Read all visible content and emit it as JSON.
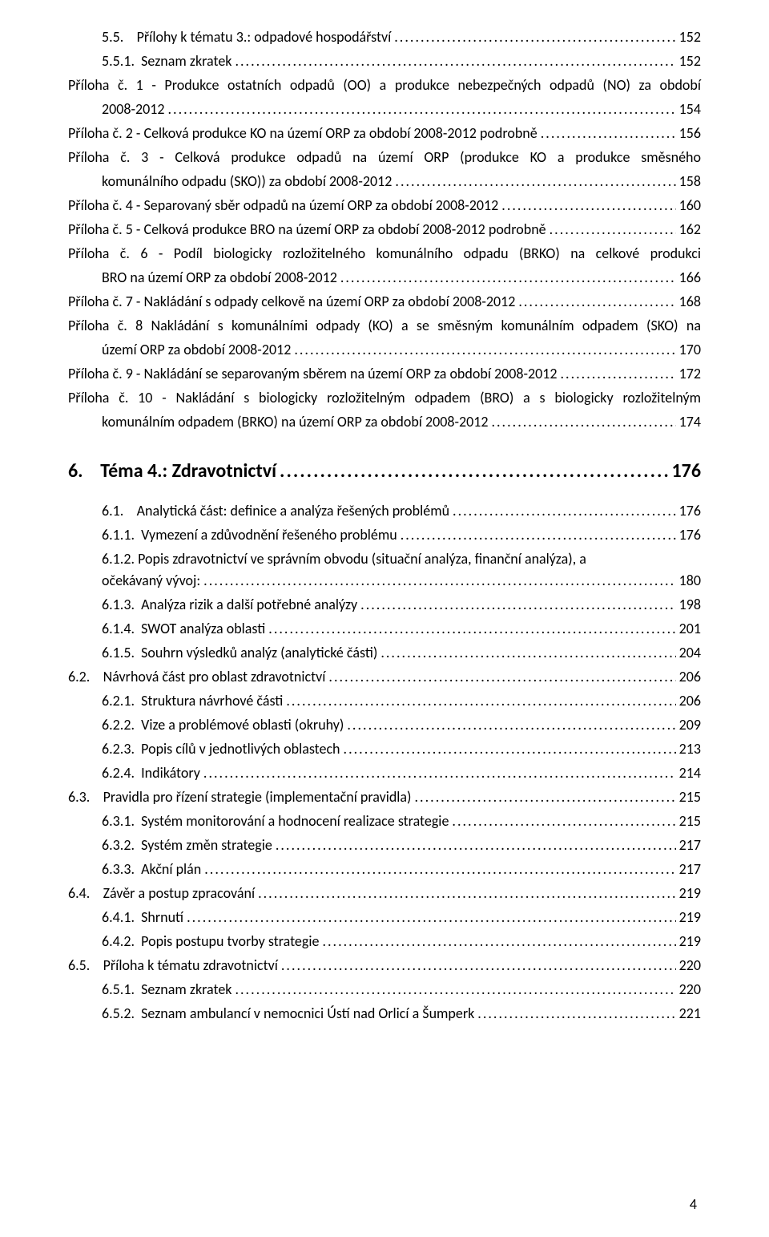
{
  "pageNumber": "4",
  "lines": [
    {
      "type": "toc",
      "lvl": 1,
      "label": "5.5.    Přílohy k tématu 3.: odpadové hospodářství",
      "page": "152"
    },
    {
      "type": "toc",
      "lvl": 1,
      "label": "5.5.1.  Seznam zkratek",
      "page": "152"
    },
    {
      "type": "priloha-first",
      "text": "Příloha č. 1 - Produkce ostatních odpadů (OO) a produkce nebezpečných odpadů (NO) za období"
    },
    {
      "type": "cont-last",
      "text": "2008-2012",
      "page": "154"
    },
    {
      "type": "toc",
      "lvl": 2,
      "label": "Příloha č. 2 - Celková produkce KO na území ORP za období 2008-2012 podrobně",
      "page": "156"
    },
    {
      "type": "priloha-first",
      "text": "Příloha č. 3 - Celková produkce odpadů na území ORP (produkce KO a produkce směsného"
    },
    {
      "type": "cont-last",
      "text": "komunálního odpadu (SKO)) za období 2008-2012",
      "page": "158"
    },
    {
      "type": "toc",
      "lvl": 2,
      "label": "Příloha č. 4 - Separovaný sběr odpadů na území ORP za období 2008-2012",
      "page": "160"
    },
    {
      "type": "toc",
      "lvl": 2,
      "label": "Příloha č. 5 - Celková produkce BRO na území ORP za období 2008-2012 podrobně",
      "page": "162"
    },
    {
      "type": "priloha-first",
      "text": "Příloha č. 6 - Podíl biologicky rozložitelného komunálního odpadu (BRKO) na celkové produkci"
    },
    {
      "type": "cont-last",
      "text": "BRO na území ORP za období 2008-2012",
      "page": "166"
    },
    {
      "type": "toc",
      "lvl": 2,
      "label": "Příloha č. 7 - Nakládání s odpady celkově na území ORP za období 2008-2012",
      "page": "168"
    },
    {
      "type": "priloha-first",
      "text": "Příloha č. 8 Nakládání s komunálními odpady (KO) a se směsným komunálním odpadem (SKO) na"
    },
    {
      "type": "cont-last",
      "text": "území ORP za období 2008-2012",
      "page": "170"
    },
    {
      "type": "toc",
      "lvl": 2,
      "label": "Příloha č. 9 - Nakládání se separovaným sběrem na území ORP za období 2008-2012",
      "page": "172"
    },
    {
      "type": "priloha-first",
      "text": "Příloha č. 10 - Nakládání s biologicky rozložitelným odpadem (BRO) a s biologicky rozložitelným"
    },
    {
      "type": "cont-last",
      "text": "komunálním odpadem (BRKO) na území ORP za období 2008-2012",
      "page": "174"
    },
    {
      "type": "chapter",
      "num": "6.    ",
      "title": "Téma 4.: Zdravotnictví",
      "page": "176"
    },
    {
      "type": "toc",
      "lvl": 1,
      "label": "6.1.    Analytická část: definice a analýza řešených problémů",
      "page": "176"
    },
    {
      "type": "toc",
      "lvl": 1,
      "label": "6.1.1.  Vymezení a zdůvodnění řešeného problému",
      "page": "176"
    },
    {
      "type": "cont",
      "text": "6.1.2.  Popis  zdravotnictví  ve  správním  obvodu  (situační  analýza,  finanční  analýza),  a"
    },
    {
      "type": "cont-last",
      "text": "očekávaný vývoj:",
      "page": "180"
    },
    {
      "type": "toc",
      "lvl": 1,
      "label": "6.1.3.  Analýza rizik a další potřebné analýzy",
      "page": "198"
    },
    {
      "type": "toc",
      "lvl": 1,
      "label": "6.1.4.  SWOT analýza oblasti",
      "page": "201"
    },
    {
      "type": "toc",
      "lvl": 1,
      "label": "6.1.5.  Souhrn výsledků analýz (analytické části)",
      "page": "204"
    },
    {
      "type": "toc",
      "lvl": 0,
      "label": "6.2.    Návrhová část pro oblast zdravotnictví",
      "page": "206"
    },
    {
      "type": "toc",
      "lvl": 1,
      "label": "6.2.1.  Struktura návrhové části",
      "page": "206"
    },
    {
      "type": "toc",
      "lvl": 1,
      "label": "6.2.2.  Vize a problémové oblasti (okruhy)",
      "page": "209"
    },
    {
      "type": "toc",
      "lvl": 1,
      "label": "6.2.3.  Popis cílů v jednotlivých oblastech",
      "page": "213"
    },
    {
      "type": "toc",
      "lvl": 1,
      "label": "6.2.4.  Indikátory",
      "page": "214"
    },
    {
      "type": "toc",
      "lvl": 0,
      "label": "6.3.    Pravidla pro řízení strategie (implementační pravidla)",
      "page": "215"
    },
    {
      "type": "toc",
      "lvl": 1,
      "label": "6.3.1.  Systém monitorování a hodnocení realizace strategie",
      "page": "215"
    },
    {
      "type": "toc",
      "lvl": 1,
      "label": "6.3.2.  Systém změn strategie",
      "page": "217"
    },
    {
      "type": "toc",
      "lvl": 1,
      "label": "6.3.3.  Akční plán",
      "page": "217"
    },
    {
      "type": "toc",
      "lvl": 0,
      "label": "6.4.    Závěr a postup zpracování",
      "page": "219"
    },
    {
      "type": "toc",
      "lvl": 1,
      "label": "6.4.1.  Shrnutí",
      "page": "219"
    },
    {
      "type": "toc",
      "lvl": 1,
      "label": "6.4.2.  Popis postupu tvorby strategie",
      "page": "219"
    },
    {
      "type": "toc",
      "lvl": 0,
      "label": "6.5.    Příloha k tématu zdravotnictví",
      "page": "220"
    },
    {
      "type": "toc",
      "lvl": 1,
      "label": "6.5.1.  Seznam zkratek",
      "page": "220"
    },
    {
      "type": "toc",
      "lvl": 1,
      "label": "6.5.2.  Seznam ambulancí v nemocnici Ústí nad Orlicí a Šumperk",
      "page": "221"
    }
  ],
  "leaderChar": "."
}
